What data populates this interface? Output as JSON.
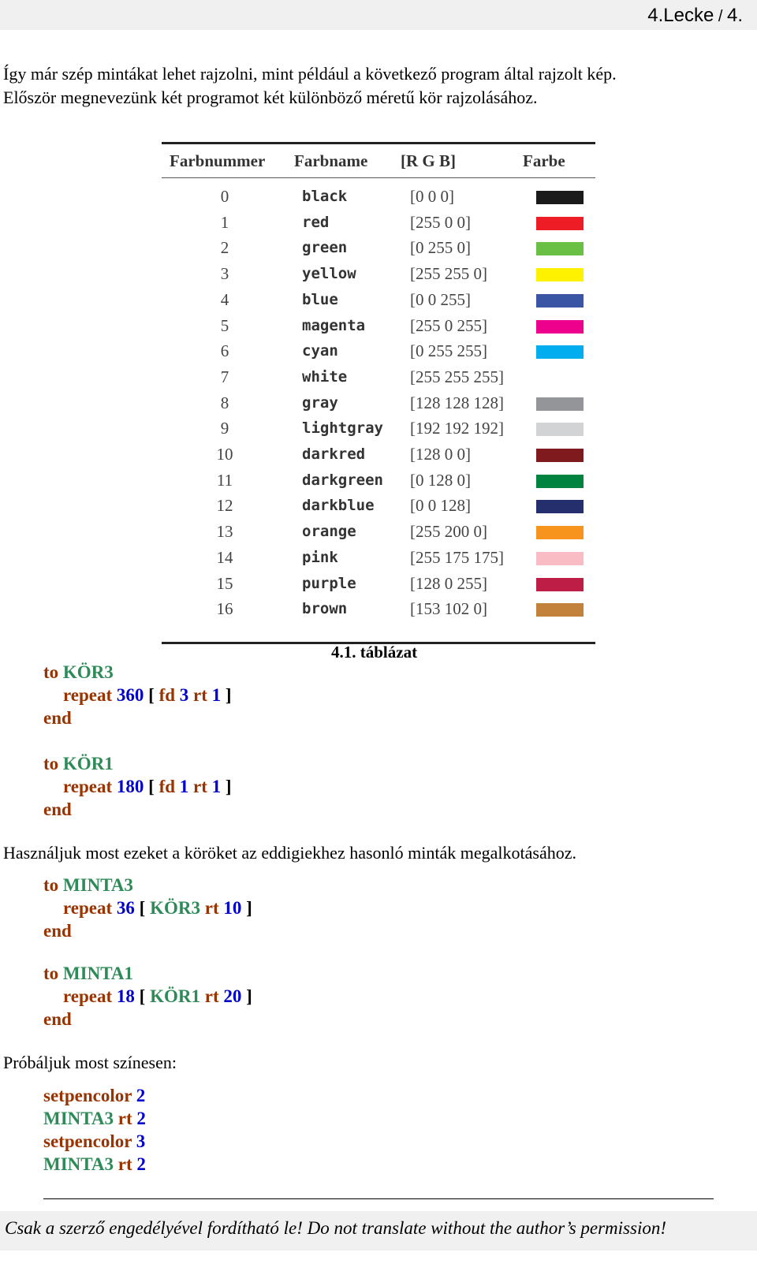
{
  "header": {
    "lesson": "4.Lecke",
    "sep": " / ",
    "page": "4."
  },
  "intro": {
    "line1": "Így már szép mintákat lehet rajzolni, mint például a következő program által rajzolt kép.",
    "line2": "Először megnevezünk két programot két különböző méretű kör rajzolásához."
  },
  "table": {
    "headers": [
      "Farbnummer",
      "Farbname",
      "[R G B]",
      "Farbe"
    ],
    "rows": [
      {
        "num": "0",
        "name": "black",
        "rgb": "[0 0 0]",
        "color": "#1a1a1a"
      },
      {
        "num": "1",
        "name": "red",
        "rgb": "[255 0 0]",
        "color": "#ee1c25"
      },
      {
        "num": "2",
        "name": "green",
        "rgb": "[0 255 0]",
        "color": "#6abf45"
      },
      {
        "num": "3",
        "name": "yellow",
        "rgb": "[255 255 0]",
        "color": "#fff200"
      },
      {
        "num": "4",
        "name": "blue",
        "rgb": "[0 0 255]",
        "color": "#3a55a4"
      },
      {
        "num": "5",
        "name": "magenta",
        "rgb": "[255 0 255]",
        "color": "#ec008c"
      },
      {
        "num": "6",
        "name": "cyan",
        "rgb": "[0 255 255]",
        "color": "#00aeef"
      },
      {
        "num": "7",
        "name": "white",
        "rgb": "[255 255 255]",
        "color": "#ffffff"
      },
      {
        "num": "8",
        "name": "gray",
        "rgb": "[128 128 128]",
        "color": "#939598"
      },
      {
        "num": "9",
        "name": "lightgray",
        "rgb": "[192 192 192]",
        "color": "#d1d3d4"
      },
      {
        "num": "10",
        "name": "darkred",
        "rgb": "[128 0 0]",
        "color": "#7f1a1f"
      },
      {
        "num": "11",
        "name": "darkgreen",
        "rgb": "[0 128 0]",
        "color": "#00833e"
      },
      {
        "num": "12",
        "name": "darkblue",
        "rgb": "[0 0 128]",
        "color": "#262f6d"
      },
      {
        "num": "13",
        "name": "orange",
        "rgb": "[255 200 0]",
        "color": "#f7941d"
      },
      {
        "num": "14",
        "name": "pink",
        "rgb": "[255 175 175]",
        "color": "#f9bcc4"
      },
      {
        "num": "15",
        "name": "purple",
        "rgb": "[128 0 255]",
        "color": "#be1e45"
      },
      {
        "num": "16",
        "name": "brown",
        "rgb": "[153 102 0]",
        "color": "#c3823c"
      }
    ],
    "caption": "4.1. táblázat"
  },
  "code1": {
    "to": "to",
    "name": "KÖR3",
    "repeat": "repeat",
    "count": "360",
    "ob": "[",
    "fd": "fd",
    "fdv": "3",
    "rt": "rt",
    "rtv": "1",
    "cb": "]",
    "end": "end"
  },
  "code2": {
    "to": "to",
    "name": "KÖR1",
    "repeat": "repeat",
    "count": "180",
    "ob": "[",
    "fd": "fd",
    "fdv": "1",
    "rt": "rt",
    "rtv": "1",
    "cb": "]",
    "end": "end"
  },
  "para2": "Használjuk most ezeket a köröket az eddigiekhez hasonló minták megalkotásához.",
  "code3": {
    "to": "to",
    "name": "MINTA3",
    "repeat": "repeat",
    "count": "36",
    "ob": "[",
    "call": "KÖR3",
    "rt": "rt",
    "rtv": "10",
    "cb": "]",
    "end": "end"
  },
  "code4": {
    "to": "to",
    "name": "MINTA1",
    "repeat": "repeat",
    "count": "18",
    "ob": "[",
    "call": "KÖR1",
    "rt": "rt",
    "rtv": "20",
    "cb": "]",
    "end": "end"
  },
  "para3": "Próbáljuk most színesen:",
  "code5": {
    "l1cmd": "setpencolor",
    "l1v": "2",
    "l2name": "MINTA3",
    "l2rt": "rt",
    "l2v": "2",
    "l3cmd": "setpencolor",
    "l3v": "3",
    "l4name": "MINTA3",
    "l4rt": "rt",
    "l4v": "2"
  },
  "footer": "Csak a szerző engedélyével fordítható le! Do not translate without the author’s permission!"
}
